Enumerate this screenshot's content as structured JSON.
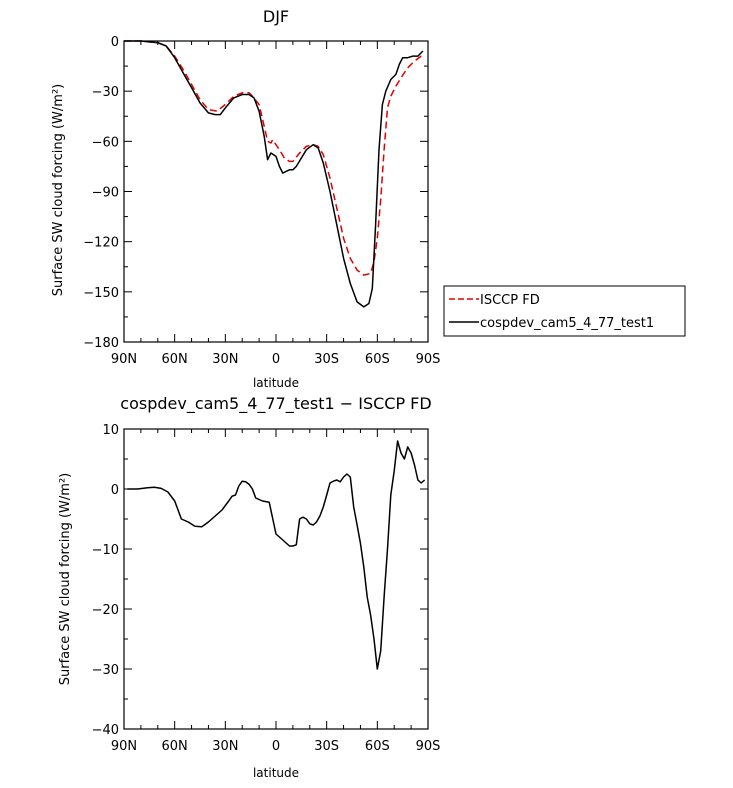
{
  "chart_data": [
    {
      "type": "line",
      "title": "DJF",
      "xlabel": "latitude",
      "ylabel": "Surface SW cloud forcing (W/m²)",
      "xlim": [
        90,
        -90
      ],
      "ylim": [
        -180,
        0
      ],
      "xticks": [
        90,
        60,
        30,
        0,
        -30,
        -60,
        -90
      ],
      "xtick_labels": [
        "90N",
        "60N",
        "30N",
        "0",
        "30S",
        "60S",
        "90S"
      ],
      "yticks": [
        0,
        -30,
        -60,
        -90,
        -120,
        -150,
        -180
      ],
      "ytick_labels": [
        "0",
        "−30",
        "−60",
        "−90",
        "−120",
        "−150",
        "−180"
      ],
      "legend_placement": "outside-right",
      "series": [
        {
          "name": "ISCCP FD",
          "color": "#e00000",
          "style": "dashed",
          "x": [
            90,
            80,
            70,
            65,
            60,
            55,
            50,
            45,
            40,
            35,
            30,
            25,
            20,
            16,
            14,
            10,
            7,
            5,
            3,
            2,
            -2,
            -5,
            -8,
            -10,
            -14,
            -18,
            -22,
            -25,
            -28,
            -32,
            -36,
            -40,
            -44,
            -48,
            -52,
            -56,
            -58,
            -60,
            -62,
            -64,
            -66,
            -68,
            -71,
            -74,
            -78,
            -82,
            -86,
            -88
          ],
          "y": [
            0,
            0,
            -1,
            -3,
            -9,
            -17,
            -26,
            -35,
            -41,
            -42,
            -38,
            -33,
            -31,
            -31,
            -33,
            -38,
            -51,
            -60,
            -61,
            -59,
            -65,
            -70,
            -72,
            -72,
            -67,
            -63,
            -62,
            -63,
            -68,
            -82,
            -100,
            -118,
            -130,
            -137,
            -140,
            -139,
            -132,
            -118,
            -95,
            -65,
            -40,
            -33,
            -27,
            -22,
            -16,
            -12,
            -9,
            -9
          ]
        },
        {
          "name": "cospdev_cam5_4_77_test1",
          "color": "#000000",
          "style": "solid",
          "x": [
            90,
            80,
            70,
            65,
            60,
            55,
            50,
            45,
            40,
            36,
            33,
            30,
            25,
            20,
            16,
            13,
            10,
            7,
            5,
            3,
            0,
            -2,
            -4,
            -6,
            -8,
            -10,
            -12,
            -15,
            -18,
            -22,
            -25,
            -28,
            -32,
            -36,
            -40,
            -44,
            -48,
            -52,
            -55,
            -57,
            -59,
            -61,
            -63,
            -65,
            -68,
            -71,
            -73,
            -75,
            -78,
            -81,
            -84,
            -87
          ],
          "y": [
            0,
            0,
            -1,
            -3,
            -10,
            -19,
            -28,
            -37,
            -43,
            -44,
            -44,
            -40,
            -34,
            -32,
            -32,
            -34,
            -42,
            -57,
            -71,
            -67,
            -69,
            -75,
            -79,
            -78,
            -77,
            -77,
            -75,
            -70,
            -65,
            -62,
            -64,
            -73,
            -90,
            -110,
            -130,
            -145,
            -156,
            -159,
            -157,
            -148,
            -110,
            -65,
            -38,
            -30,
            -23,
            -20,
            -14,
            -10,
            -10,
            -9,
            -9,
            -6
          ]
        }
      ]
    },
    {
      "type": "line",
      "title": "cospdev_cam5_4_77_test1 − ISCCP FD",
      "xlabel": "latitude",
      "ylabel": "Surface SW cloud forcing (W/m²)",
      "xlim": [
        90,
        -90
      ],
      "ylim": [
        -40,
        10
      ],
      "xticks": [
        90,
        60,
        30,
        0,
        -30,
        -60,
        -90
      ],
      "xtick_labels": [
        "90N",
        "60N",
        "30N",
        "0",
        "30S",
        "60S",
        "90S"
      ],
      "yticks": [
        10,
        0,
        -10,
        -20,
        -30,
        -40
      ],
      "ytick_labels": [
        "10",
        "0",
        "−10",
        "−20",
        "−30",
        "−40"
      ],
      "series": [
        {
          "color": "#000000",
          "style": "solid",
          "x": [
            88,
            82,
            76,
            72,
            68,
            64,
            60,
            56,
            52,
            48,
            44,
            40,
            36,
            32,
            28,
            26,
            24,
            22,
            20,
            18,
            16,
            14,
            12,
            8,
            4,
            0,
            -2,
            -4,
            -6,
            -8,
            -10,
            -12,
            -14,
            -16,
            -18,
            -20,
            -22,
            -24,
            -26,
            -28,
            -30,
            -32,
            -34,
            -36,
            -38,
            -40,
            -42,
            -44,
            -46,
            -48,
            -50,
            -52,
            -54,
            -56,
            -58,
            -60,
            -62,
            -64,
            -66,
            -68,
            -70,
            -72,
            -74,
            -76,
            -78,
            -80,
            -82,
            -84,
            -86,
            -88
          ],
          "y": [
            0,
            0,
            0.2,
            0.3,
            0.1,
            -0.5,
            -2,
            -5,
            -5.5,
            -6.2,
            -6.3,
            -5.5,
            -4.5,
            -3.5,
            -2,
            -1.2,
            -1,
            0.5,
            1.3,
            1.2,
            0.8,
            0,
            -1.5,
            -2,
            -2.2,
            -7.5,
            -8,
            -8.5,
            -9,
            -9.5,
            -9.5,
            -9.3,
            -5,
            -4.7,
            -5,
            -5.8,
            -6,
            -5.5,
            -4.5,
            -3,
            -1,
            1,
            1.3,
            1.5,
            1.2,
            2,
            2.5,
            2,
            -3,
            -6,
            -9,
            -13,
            -18,
            -21,
            -25,
            -30,
            -27,
            -18,
            -10,
            -1,
            3,
            8,
            6,
            5,
            7,
            6,
            4,
            1.5,
            1,
            1.5
          ]
        }
      ]
    }
  ]
}
